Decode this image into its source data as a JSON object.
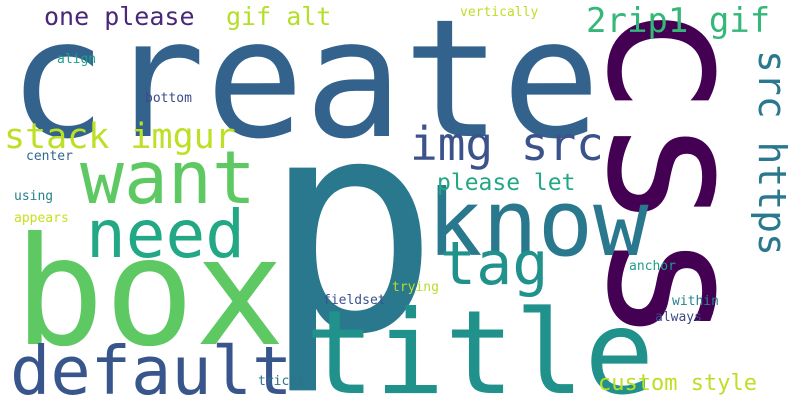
{
  "words": [
    {
      "text": "p",
      "color": "#2a788e"
    },
    {
      "text": "create",
      "color": "#33638d"
    },
    {
      "text": "box",
      "color": "#5ec962"
    },
    {
      "text": "css",
      "color": "#440154"
    },
    {
      "text": "title",
      "color": "#21918c"
    },
    {
      "text": "know",
      "color": "#2a788e"
    },
    {
      "text": "want",
      "color": "#5ec962"
    },
    {
      "text": "default",
      "color": "#39568c"
    },
    {
      "text": "need",
      "color": "#22a884"
    },
    {
      "text": "tag",
      "color": "#21918c"
    },
    {
      "text": "img src",
      "color": "#3b528b"
    },
    {
      "text": "src https",
      "color": "#2a788e"
    },
    {
      "text": "stack imgur",
      "color": "#bddf26"
    },
    {
      "text": "2rip1 gif",
      "color": "#35b779"
    },
    {
      "text": "one please",
      "color": "#482878"
    },
    {
      "text": "gif alt",
      "color": "#b5de2b"
    },
    {
      "text": "please let",
      "color": "#22a884"
    },
    {
      "text": "custom style",
      "color": "#bddf26"
    },
    {
      "text": "vertically",
      "color": "#bddf26"
    },
    {
      "text": "align",
      "color": "#1f9e89"
    },
    {
      "text": "bottom",
      "color": "#3e4989"
    },
    {
      "text": "center",
      "color": "#31688e"
    },
    {
      "text": "using",
      "color": "#26828e"
    },
    {
      "text": "appears",
      "color": "#c8e020"
    },
    {
      "text": "anchor",
      "color": "#1f9e89"
    },
    {
      "text": "trying",
      "color": "#b5de2b"
    },
    {
      "text": "fieldset",
      "color": "#3b528b"
    },
    {
      "text": "within",
      "color": "#26828e"
    },
    {
      "text": "always",
      "color": "#3e4989"
    },
    {
      "text": "tricks",
      "color": "#2c728e"
    }
  ]
}
